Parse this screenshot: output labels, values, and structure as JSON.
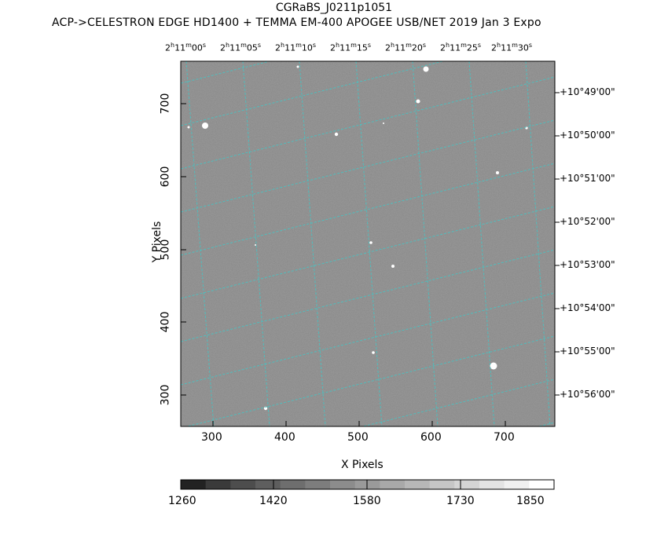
{
  "header": {
    "title": "CGRaBS_J0211p1051",
    "subtitle": "ACP->CELESTRON EDGE HD1400 + TEMMA EM-400 APOGEE USB/NET   2019 Jan  3    Expo"
  },
  "axes": {
    "xlabel": "X Pixels",
    "ylabel": "Y Pixels",
    "x_ticks": [
      "300",
      "400",
      "500",
      "600",
      "700"
    ],
    "y_ticks": [
      "300",
      "400",
      "500",
      "600",
      "700"
    ],
    "ra_ticks": [
      "2h11m00s",
      "2h11m05s",
      "2h11m10s",
      "2h11m15s",
      "2h11m20s",
      "2h11m25s",
      "2h11m30s"
    ],
    "dec_ticks": [
      "+10°49'00\"",
      "+10°50'00\"",
      "+10°51'00\"",
      "+10°52'00\"",
      "+10°53'00\"",
      "+10°54'00\"",
      "+10°55'00\"",
      "+10°56'00\""
    ]
  },
  "colorbar": {
    "labels": [
      "1260",
      "1420",
      "1580",
      "1730",
      "1850"
    ],
    "colors": [
      "#222222",
      "#3a3a3a",
      "#4d4d4d",
      "#5e5e5e",
      "#6e6e6e",
      "#7d7d7d",
      "#8c8c8c",
      "#9a9a9a",
      "#a9a9a9",
      "#b7b7b7",
      "#c6c6c6",
      "#d4d4d4",
      "#e3e3e3",
      "#f0f0f0",
      "#ffffff"
    ]
  },
  "grid_color": "#40c8c8",
  "image_background": "#878787"
}
